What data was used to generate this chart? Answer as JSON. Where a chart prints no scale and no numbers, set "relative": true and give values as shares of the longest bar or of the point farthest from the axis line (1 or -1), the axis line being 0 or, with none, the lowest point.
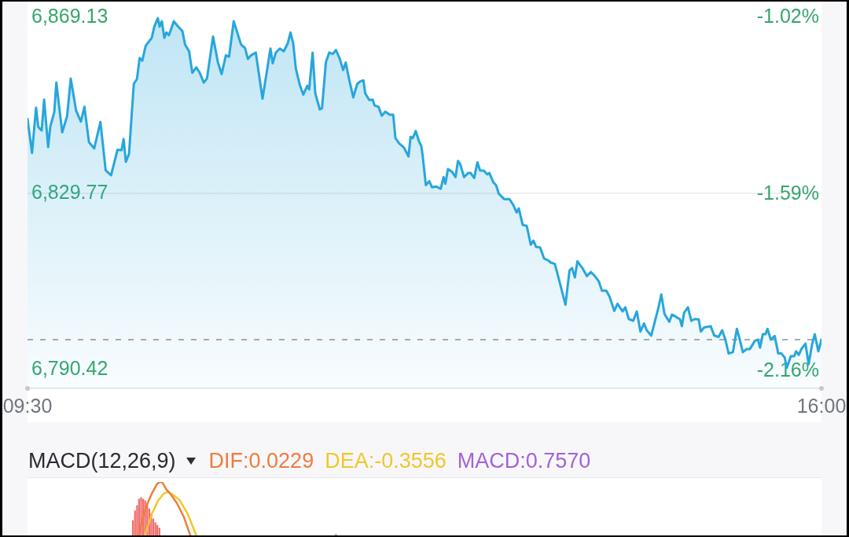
{
  "chart_data": [
    {
      "type": "area",
      "color": "#27a6dc",
      "x": [
        9.5,
        9.537,
        9.57,
        9.588,
        9.616,
        9.636,
        9.669,
        9.686,
        9.719,
        9.736,
        9.784,
        9.824,
        9.854,
        9.898,
        9.937,
        9.966,
        10.003,
        10.046,
        10.097,
        10.14,
        10.184,
        10.237,
        10.27,
        10.287,
        10.305,
        10.331,
        10.37,
        10.396,
        10.418,
        10.44,
        10.467,
        10.517,
        10.538,
        10.567,
        10.582,
        10.6,
        10.62,
        10.637,
        10.658,
        10.698,
        10.724,
        10.768,
        10.79,
        10.823,
        10.849,
        10.882,
        10.91,
        10.943,
        10.969,
        11.019,
        11.058,
        11.089,
        11.124,
        11.15,
        11.188,
        11.248,
        11.281,
        11.304,
        11.33,
        11.369,
        11.424,
        11.489,
        11.507,
        11.533,
        11.566,
        11.598,
        11.631,
        11.653,
        11.675,
        11.697,
        11.73,
        11.758,
        11.79,
        11.806,
        11.834,
        11.856,
        11.893,
        11.911,
        11.943,
        11.97,
        11.999,
        12.025,
        12.058,
        12.084,
        12.105,
        12.134,
        12.167,
        12.199,
        12.226,
        12.25,
        12.265,
        12.298,
        12.326,
        12.341,
        12.374,
        12.4,
        12.429,
        12.466,
        12.494,
        12.512,
        12.544,
        12.582,
        12.619,
        12.636,
        12.654,
        12.678,
        12.702,
        12.724,
        12.735,
        12.761,
        12.789,
        12.812,
        12.844,
        12.883,
        12.906,
        12.921,
        12.942,
        12.975,
        13.004,
        13.024,
        13.041,
        13.074,
        13.107,
        13.128,
        13.157,
        13.183,
        13.205,
        13.237,
        13.264,
        13.281,
        13.314,
        13.336,
        13.358,
        13.401,
        13.445,
        13.474,
        13.504,
        13.522,
        13.554,
        13.587,
        13.62,
        13.642,
        13.664,
        13.696,
        13.729,
        13.762,
        13.784,
        13.817,
        13.849,
        13.904,
        13.937,
        13.958,
        13.981,
        14.002,
        14.042,
        14.079,
        14.112,
        14.144,
        14.177,
        14.203,
        14.238,
        14.265,
        14.304,
        14.33,
        14.372,
        14.394,
        14.422,
        14.459,
        14.488,
        14.518,
        14.547,
        14.569,
        14.606,
        14.663,
        14.689,
        14.715,
        14.754,
        14.776,
        14.809,
        14.842,
        14.857,
        14.875,
        14.907,
        14.934,
        14.962,
        14.995,
        15.012,
        15.039,
        15.093,
        15.122,
        15.158,
        15.187,
        15.213,
        15.24,
        15.275,
        15.307,
        15.334,
        15.356,
        15.388,
        15.414,
        15.454,
        15.48,
        15.497,
        15.52,
        15.541,
        15.558,
        15.585,
        15.617,
        15.646,
        15.672,
        15.699,
        15.716,
        15.749,
        15.777,
        15.792,
        15.814,
        15.836,
        15.869,
        15.895,
        15.924,
        15.945,
        15.974,
        16
      ],
      "values": [
        6846.4,
        6838.8,
        6848.9,
        6844.6,
        6843.8,
        6850.7,
        6840.1,
        6844.6,
        6847.9,
        6854.5,
        6843.4,
        6847.0,
        6855.4,
        6848.2,
        6845.8,
        6849.1,
        6841.2,
        6839.8,
        6845.7,
        6834.9,
        6833.8,
        6839.5,
        6839.4,
        6841.9,
        6836.8,
        6838.6,
        6854.2,
        6855.3,
        6860.0,
        6859.4,
        6862.7,
        6864.5,
        6867.0,
        6868.9,
        6867.0,
        6868.2,
        6864.5,
        6865.7,
        6865.1,
        6868.2,
        6867.3,
        6866.0,
        6863.0,
        6861.5,
        6856.7,
        6857.9,
        6856.7,
        6854.5,
        6855.4,
        6864.8,
        6859.1,
        6856.4,
        6860.6,
        6860.3,
        6868.2,
        6863.0,
        6862.2,
        6859.8,
        6860.6,
        6861.2,
        6850.9,
        6862.1,
        6858.8,
        6861.2,
        6862.1,
        6861.5,
        6863.3,
        6865.7,
        6863.3,
        6857.6,
        6853.9,
        6851.8,
        6853.8,
        6853.0,
        6861.2,
        6852.1,
        6848.5,
        6848.8,
        6859.1,
        6861.2,
        6860.9,
        6861.8,
        6859.7,
        6857.3,
        6859.0,
        6855.1,
        6851.2,
        6854.2,
        6854.8,
        6855.0,
        6852.1,
        6850.6,
        6850.7,
        6849.4,
        6849.1,
        6847.1,
        6848.0,
        6847.3,
        6847.3,
        6842.1,
        6840.9,
        6840.0,
        6838.0,
        6842.4,
        6842.1,
        6843.7,
        6841.6,
        6840.3,
        6838.2,
        6831.6,
        6832.5,
        6831.1,
        6831.3,
        6830.8,
        6833.4,
        6831.9,
        6835.2,
        6834.6,
        6833.4,
        6837.0,
        6836.4,
        6833.4,
        6834.3,
        6834.3,
        6833.2,
        6836.7,
        6834.9,
        6834.8,
        6834.0,
        6834.3,
        6832.2,
        6831.6,
        6829.7,
        6828.5,
        6828.5,
        6827.3,
        6825.5,
        6826.4,
        6822.7,
        6822.5,
        6818.3,
        6819.2,
        6817.8,
        6817.7,
        6815.2,
        6814.8,
        6814.3,
        6814.0,
        6810.7,
        6804.9,
        6812.5,
        6813.1,
        6811.0,
        6814.6,
        6813.1,
        6811.3,
        6812.2,
        6811.3,
        6810.1,
        6808.0,
        6808.0,
        6806.7,
        6803.5,
        6805.1,
        6803.4,
        6804.3,
        6801.7,
        6801.3,
        6803.4,
        6798.9,
        6800.7,
        6799.2,
        6798.0,
        6804.0,
        6807.2,
        6802.8,
        6801.1,
        6802.7,
        6802.2,
        6801.6,
        6800.1,
        6803.1,
        6804.3,
        6801.3,
        6801.7,
        6801.6,
        6798.9,
        6799.8,
        6800.1,
        6798.0,
        6797.7,
        6799.2,
        6797.1,
        6794.0,
        6794.3,
        6799.5,
        6796.8,
        6794.3,
        6795.0,
        6795.0,
        6796.8,
        6797.1,
        6795.3,
        6798.3,
        6798.3,
        6799.5,
        6797.1,
        6797.9,
        6794.0,
        6794.0,
        6793.1,
        6790.8,
        6793.4,
        6793.4,
        6794.5,
        6793.7,
        6795.0,
        6796.2,
        6791.6,
        6796.2,
        6798.3,
        6794.5,
        6797.1
      ],
      "xlim": [
        9.5,
        16
      ],
      "xticks": [
        {
          "value": 9.5,
          "label": "09:30"
        },
        {
          "value": 16,
          "label": "16:00"
        }
      ],
      "ylim": [
        6786.2,
        6872.6
      ],
      "yticks": [
        {
          "value": 6790.42,
          "label": "6,790.42"
        },
        {
          "value": 6829.77,
          "label": "6,829.77"
        },
        {
          "value": 6869.13,
          "label": "6,869.13"
        }
      ],
      "y2lim": [
        -2.215,
        -0.97
      ],
      "y2ticks": [
        {
          "value": -2.16,
          "label": "-2.16%"
        },
        {
          "value": -1.59,
          "label": "-1.59%"
        },
        {
          "value": -1.02,
          "label": "-1.02%"
        }
      ],
      "ref_lines": [
        {
          "axis": "y",
          "value": 6829.77,
          "color": "#e3e5e9"
        },
        {
          "axis": "y",
          "value": 6797.1,
          "color": "#a7abb3",
          "line_style": "dashed"
        }
      ]
    },
    {
      "type": "line",
      "title": "MACD(12,26,9)",
      "relative": true,
      "xlim": [
        9.5,
        16
      ],
      "tick_labels": false,
      "legend": "top left",
      "annotations": [
        "MACD:0.7570"
      ],
      "series": [
        {
          "name": "DIF:0.0229",
          "color": "#ef7c3d",
          "x": [
            10.411,
            10.44,
            10.473,
            10.517,
            10.56,
            10.582,
            10.604,
            10.637,
            10.67,
            10.724,
            10.779,
            10.833
          ],
          "values": [
            0,
            0.3,
            0.55,
            0.78,
            0.96,
            1,
            0.99,
            0.86,
            0.78,
            0.6,
            0.35,
            0
          ]
        },
        {
          "name": "DEA:-0.3556",
          "color": "#f1c72a",
          "x": [
            10.462,
            10.517,
            10.571,
            10.615,
            10.647,
            10.691,
            10.746,
            10.812,
            10.855,
            10.882
          ],
          "values": [
            0,
            0.4,
            0.66,
            0.78,
            0.81,
            0.76,
            0.66,
            0.4,
            0.15,
            0
          ]
        },
        {
          "type": "bar",
          "color": "#ef6e6e",
          "x": [
            10.363,
            10.38,
            10.397,
            10.413,
            10.43,
            10.447,
            10.463,
            10.48,
            10.497,
            10.513,
            10.53,
            10.547,
            10.563,
            10.58,
            12.025
          ],
          "values": [
            0.28,
            0.46,
            0.56,
            0.68,
            0.71,
            0.68,
            0.65,
            0.6,
            0.5,
            0.41,
            0.31,
            0.24,
            0.19,
            0.14,
            0.02
          ]
        }
      ]
    }
  ]
}
